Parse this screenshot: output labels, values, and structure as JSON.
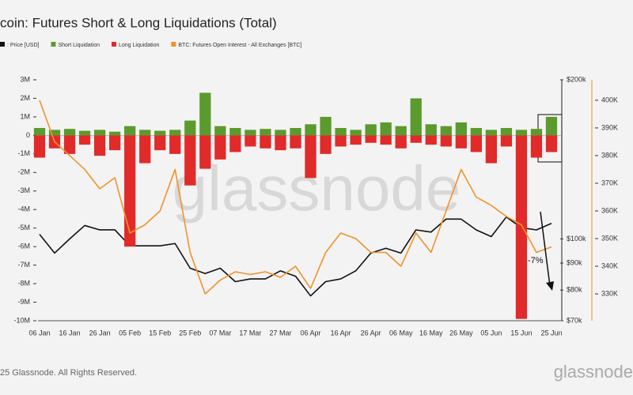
{
  "chart_data": {
    "type": "bar_line",
    "title": "coin: Futures Short & Long Liquidations (Total)",
    "categories": [
      "06 Jan",
      null,
      "16 Jan",
      null,
      "26 Jan",
      null,
      "05 Feb",
      null,
      "15 Feb",
      null,
      "25 Feb",
      null,
      "07 Mar",
      null,
      "17 Mar",
      null,
      "27 Mar",
      null,
      "06 Apr",
      null,
      "16 Apr",
      null,
      "26 Apr",
      null,
      "06 May",
      null,
      "16 May",
      null,
      "26 May",
      null,
      "05 Jun",
      null,
      "15 Jun",
      null,
      "25 Jun"
    ],
    "series": [
      {
        "name": ": Price [USD]",
        "color": "#111111",
        "axis": "y2",
        "kind": "line",
        "values": [
          102000,
          94000,
          100000,
          106000,
          104000,
          104000,
          97000,
          97000,
          97000,
          98000,
          88000,
          86000,
          88000,
          83000,
          84000,
          84000,
          87000,
          85000,
          78000,
          83000,
          84000,
          87000,
          94000,
          96000,
          94000,
          104000,
          103000,
          109000,
          109000,
          104000,
          101000,
          110000,
          105000,
          104000,
          107000
        ]
      },
      {
        "name": "Short Liquidation",
        "color": "#5b9a2c",
        "axis": "y",
        "kind": "bar",
        "values": [
          400000,
          300000,
          350000,
          250000,
          300000,
          200000,
          500000,
          300000,
          250000,
          300000,
          800000,
          2300000,
          500000,
          400000,
          300000,
          350000,
          300000,
          400000,
          600000,
          1000000,
          400000,
          300000,
          600000,
          700000,
          500000,
          2000000,
          600000,
          500000,
          700000,
          400000,
          300000,
          400000,
          300000,
          350000,
          1000000
        ]
      },
      {
        "name": "Long Liquidation",
        "color": "#e12a2a",
        "axis": "y",
        "kind": "bar",
        "values": [
          -1200000,
          -700000,
          -1000000,
          -500000,
          -1100000,
          -800000,
          -6000000,
          -1500000,
          -800000,
          -1000000,
          -2700000,
          -1800000,
          -1300000,
          -900000,
          -600000,
          -700000,
          -800000,
          -700000,
          -2300000,
          -1000000,
          -600000,
          -500000,
          -400000,
          -500000,
          -700000,
          -400000,
          -500000,
          -600000,
          -700000,
          -900000,
          -1500000,
          -600000,
          -9900000,
          -1200000,
          -900000
        ]
      },
      {
        "name": "BTC: Futures Open Interest - All Exchanges [BTC]",
        "color": "#f0922b",
        "axis": "y3",
        "kind": "line",
        "values": [
          400000,
          385000,
          380000,
          375000,
          368000,
          372000,
          352000,
          355000,
          360000,
          375000,
          345000,
          330000,
          335000,
          338000,
          337000,
          338000,
          336000,
          340000,
          332000,
          345000,
          352000,
          350000,
          345000,
          345000,
          340000,
          352000,
          345000,
          360000,
          375000,
          365000,
          362000,
          358000,
          355000,
          345000,
          347000
        ]
      }
    ],
    "ylim": [
      -10000000,
      3000000
    ],
    "yticks": [
      {
        "value": 3000000,
        "label": "3M"
      },
      {
        "value": 2000000,
        "label": "2M"
      },
      {
        "value": 1000000,
        "label": "1M"
      },
      0,
      {
        "value": -1000000,
        "label": "-1M"
      },
      {
        "value": -2000000,
        "label": "-2M"
      },
      {
        "value": -3000000,
        "label": "-3M"
      },
      {
        "value": -4000000,
        "label": "-4M"
      },
      {
        "value": -5000000,
        "label": "-5M"
      },
      {
        "value": -6000000,
        "label": "-6M"
      },
      {
        "value": -7000000,
        "label": "-7M"
      },
      {
        "value": -8000000,
        "label": "-8M"
      },
      {
        "value": -9000000,
        "label": "-9M"
      },
      {
        "value": -10000000,
        "label": "-10M"
      }
    ],
    "y2lim": [
      70000,
      200000
    ],
    "y2log": true,
    "y2ticks": [
      {
        "value": 200000,
        "label": "$200k"
      },
      {
        "value": 100000,
        "label": "$100k"
      },
      {
        "value": 90000,
        "label": "$90k"
      },
      {
        "value": 80000,
        "label": "$80k"
      },
      {
        "value": 70000,
        "label": "$70k"
      }
    ],
    "y3lim": [
      320300,
      407400
    ],
    "y3ticks": [
      {
        "value": 400000,
        "label": "400K"
      },
      {
        "value": 390000,
        "label": "390K"
      },
      {
        "value": 380000,
        "label": "380K"
      },
      {
        "value": 370000,
        "label": "370K"
      },
      {
        "value": 360000,
        "label": "360K"
      },
      {
        "value": 350000,
        "label": "350K"
      },
      {
        "value": 340000,
        "label": "340K"
      },
      {
        "value": 330000,
        "label": "330K"
      }
    ],
    "annotations": [
      "-7%"
    ],
    "watermark": "glassnode",
    "footer": "25 Glassnode. All Rights Reserved.",
    "brand": "glassnode"
  }
}
